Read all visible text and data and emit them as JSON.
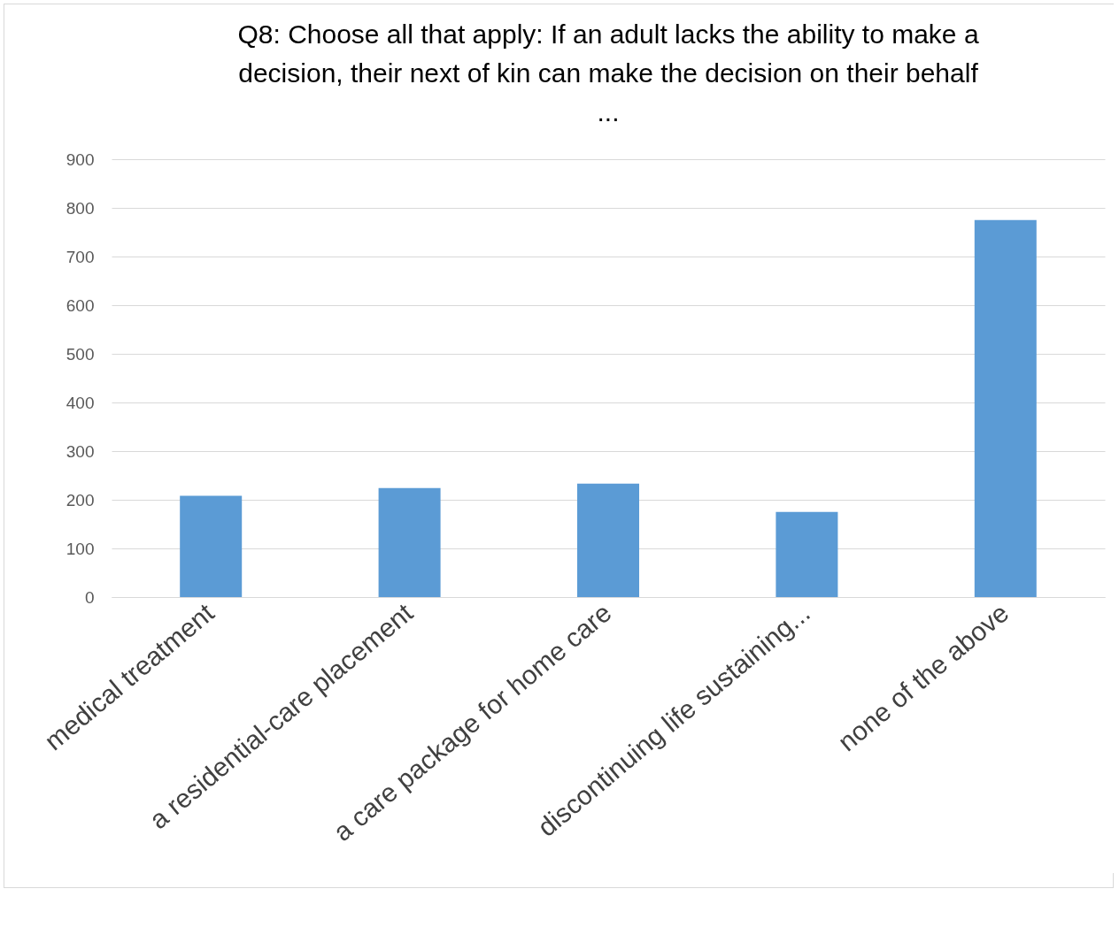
{
  "chart_data": {
    "type": "bar",
    "title": "Q8: Choose all that apply: If an adult lacks the ability to make a decision, their next of kin can make the decision on their behalf ...",
    "categories": [
      "medical treatment",
      "a residential-care placement",
      "a care package for home care",
      "discontinuing life sustaining...",
      "none of the above"
    ],
    "values": [
      208,
      224,
      233,
      175,
      775
    ],
    "color": "#5b9bd5",
    "ylim": [
      0,
      900
    ],
    "yticks": [
      0,
      100,
      200,
      300,
      400,
      500,
      600,
      700,
      800,
      900
    ],
    "grid": "y"
  }
}
